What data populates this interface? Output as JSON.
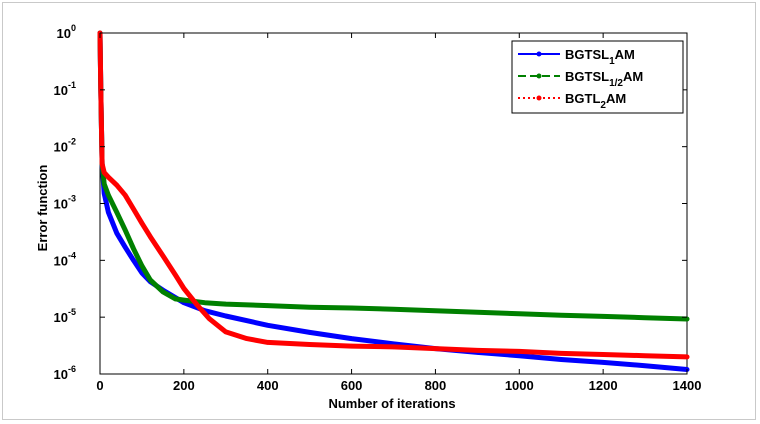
{
  "chart_data": {
    "type": "line",
    "xlabel": "Number of iterations",
    "ylabel": "Error function",
    "xlim": [
      0,
      1400
    ],
    "ylim_log10": [
      -6,
      0
    ],
    "yscale": "log",
    "grid": false,
    "legend_position": "top-right",
    "x_ticks": [
      "0",
      "200",
      "400",
      "600",
      "800",
      "1000",
      "1200",
      "1400"
    ],
    "y_ticks": [
      {
        "base": "10",
        "exp": "0"
      },
      {
        "base": "10",
        "exp": "-1"
      },
      {
        "base": "10",
        "exp": "-2"
      },
      {
        "base": "10",
        "exp": "-3"
      },
      {
        "base": "10",
        "exp": "-4"
      },
      {
        "base": "10",
        "exp": "-5"
      },
      {
        "base": "10",
        "exp": "-6"
      }
    ],
    "series": [
      {
        "name": "BGTSL1AM",
        "label_main": "BGTSL",
        "label_sub": "1",
        "label_tail": "AM",
        "color": "#0000ff",
        "style": "solid",
        "x": [
          0,
          2,
          5,
          10,
          20,
          40,
          60,
          80,
          100,
          120,
          150,
          180,
          200,
          250,
          300,
          400,
          500,
          600,
          700,
          800,
          900,
          1000,
          1100,
          1200,
          1300,
          1400
        ],
        "y": [
          1,
          0.1,
          0.005,
          0.0015,
          0.0007,
          0.0003,
          0.00017,
          0.0001,
          6e-05,
          4.2e-05,
          3e-05,
          2.2e-05,
          1.8e-05,
          1.3e-05,
          1.05e-05,
          7.2e-06,
          5.4e-06,
          4.2e-06,
          3.4e-06,
          2.8e-06,
          2.4e-06,
          2.1e-06,
          1.8e-06,
          1.6e-06,
          1.4e-06,
          1.2e-06
        ]
      },
      {
        "name": "BGTSL1/2AM",
        "label_main": "BGTSL",
        "label_sub": "1/2",
        "label_tail": "AM",
        "color": "#008000",
        "style": "dashed",
        "x": [
          0,
          2,
          5,
          10,
          20,
          40,
          60,
          80,
          100,
          120,
          150,
          180,
          200,
          250,
          300,
          400,
          500,
          600,
          700,
          800,
          900,
          1000,
          1100,
          1200,
          1300,
          1400
        ],
        "y": [
          1,
          0.1,
          0.005,
          0.0022,
          0.0014,
          0.0007,
          0.00034,
          0.00016,
          8e-05,
          4.5e-05,
          2.8e-05,
          2.1e-05,
          2e-05,
          1.8e-05,
          1.7e-05,
          1.6e-05,
          1.5e-05,
          1.45e-05,
          1.38e-05,
          1.3e-05,
          1.22e-05,
          1.15e-05,
          1.08e-05,
          1.03e-05,
          9.8e-06,
          9.3e-06
        ]
      },
      {
        "name": "BGTL2AM",
        "label_main": "BGTL",
        "label_sub": "2",
        "label_tail": "AM",
        "color": "#ff0000",
        "style": "dotted",
        "x": [
          0,
          2,
          5,
          10,
          20,
          40,
          60,
          80,
          100,
          120,
          150,
          180,
          200,
          230,
          260,
          300,
          350,
          400,
          500,
          600,
          700,
          800,
          900,
          1000,
          1100,
          1200,
          1300,
          1400
        ],
        "y": [
          1,
          0.1,
          0.005,
          0.0035,
          0.0029,
          0.0021,
          0.0014,
          0.0008,
          0.00045,
          0.00026,
          0.00012,
          5.5e-05,
          3.2e-05,
          1.7e-05,
          9.5e-06,
          5.5e-06,
          4.2e-06,
          3.6e-06,
          3.3e-06,
          3.1e-06,
          3e-06,
          2.8e-06,
          2.6e-06,
          2.5e-06,
          2.3e-06,
          2.2e-06,
          2.1e-06,
          2e-06
        ]
      }
    ]
  }
}
